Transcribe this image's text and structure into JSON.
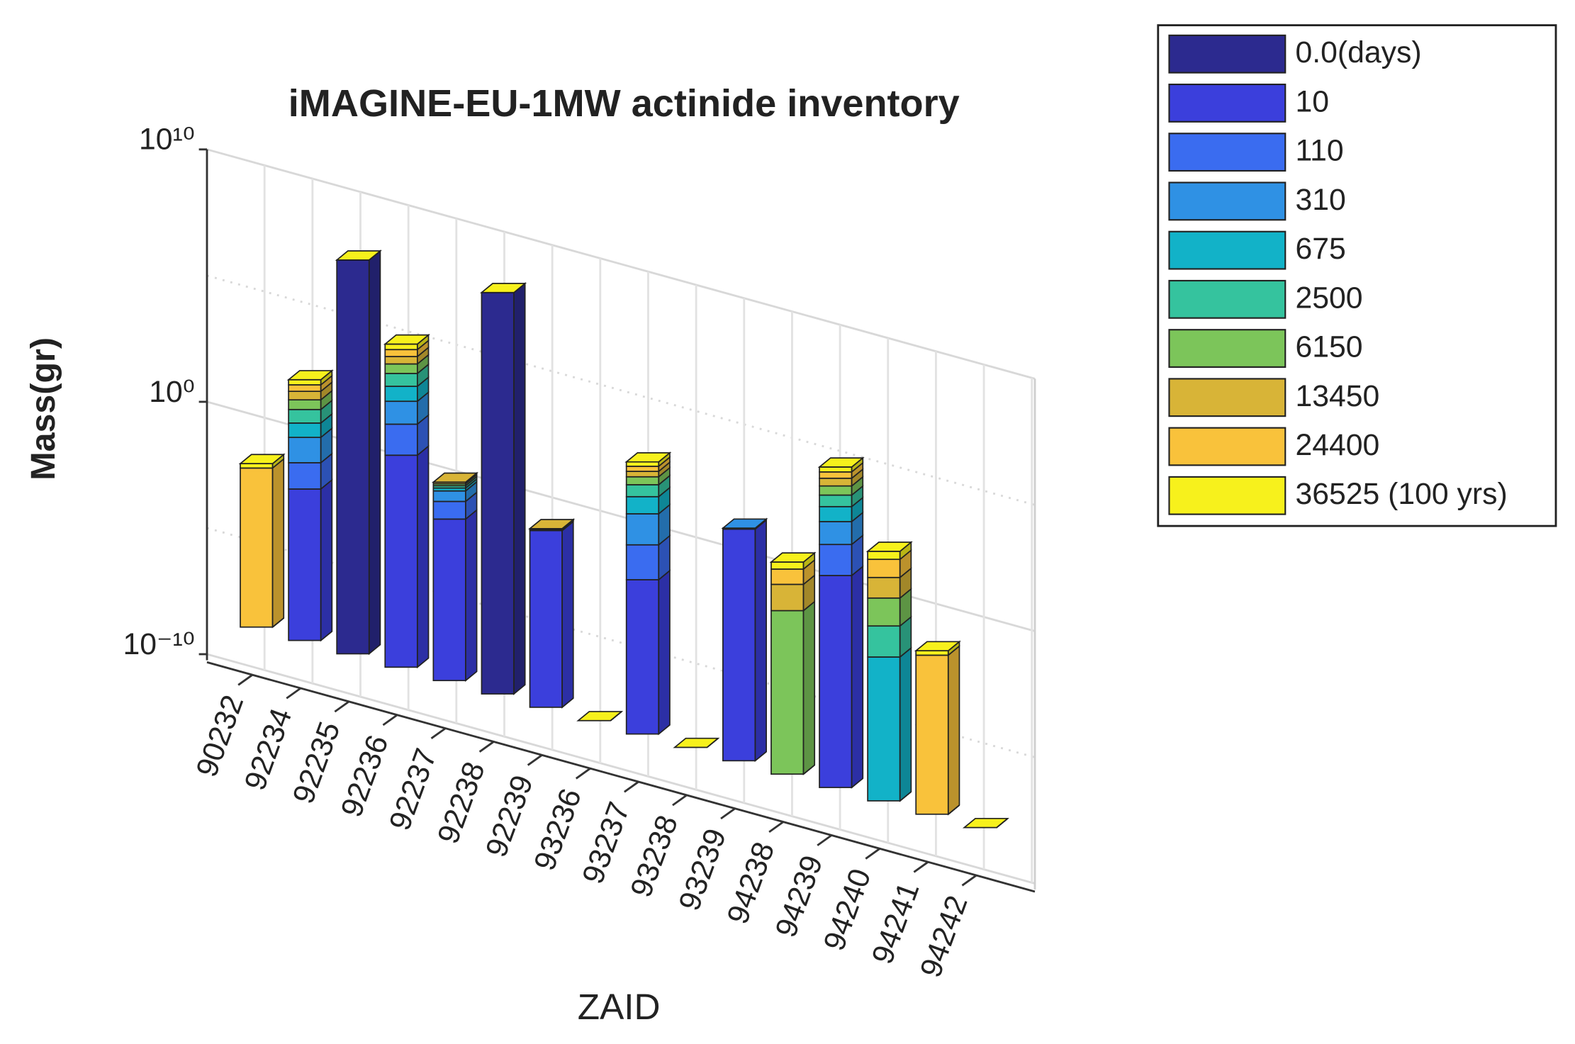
{
  "chart_data": {
    "type": "bar3",
    "title": "iMAGINE-EU-1MW actinide inventory",
    "xlabel": "ZAID",
    "ylabel": "Mass(gr)",
    "categories": [
      "90232",
      "92234",
      "92235",
      "92236",
      "92237",
      "92238",
      "92239",
      "93236",
      "93237",
      "93238",
      "93239",
      "94238",
      "94239",
      "94240",
      "94241",
      "94242"
    ],
    "series": [
      {
        "name": "0.0(days)",
        "color": "#2c2a8f",
        "values": [
          0,
          0,
          400000,
          0,
          0,
          800000,
          0,
          0,
          0,
          0,
          0,
          0,
          0,
          0,
          0,
          0
        ]
      },
      {
        "name": "10",
        "color": "#3b3fdc",
        "values": [
          0,
          0.0001,
          0,
          0.025,
          0.00025,
          0,
          0.001,
          0,
          0.00013,
          0,
          0.15,
          0,
          0.025,
          0,
          0,
          0
        ]
      },
      {
        "name": "110",
        "color": "#3a6cf0",
        "values": [
          0,
          0.001,
          0,
          0.4,
          0.001,
          0,
          0.0001,
          0,
          0.003,
          0,
          0.01,
          0,
          0.4,
          0,
          0,
          0
        ]
      },
      {
        "name": "310",
        "color": "#2f91e4",
        "values": [
          0,
          0.01,
          0,
          3,
          0.002,
          0,
          2e-05,
          0,
          0.05,
          0,
          0.005,
          0,
          3,
          0,
          0,
          0
        ]
      },
      {
        "name": "675",
        "color": "#12b2c8",
        "values": [
          0,
          0.03,
          0,
          10,
          0.001,
          0,
          2e-05,
          0,
          0.2,
          0,
          0,
          0,
          10,
          5e-05,
          0,
          0
        ]
      },
      {
        "name": "2500",
        "color": "#35c39e",
        "values": [
          0,
          0.1,
          0,
          30,
          0.001,
          0,
          2e-05,
          0,
          0.5,
          0,
          0,
          0,
          25,
          0.0008,
          0,
          0
        ]
      },
      {
        "name": "6150",
        "color": "#7cc55a",
        "values": [
          0,
          0.2,
          0,
          60,
          0.001,
          0,
          2e-05,
          0,
          0.8,
          0,
          0,
          0.0003,
          50,
          0.01,
          0,
          0
        ]
      },
      {
        "name": "13450",
        "color": "#d8b437",
        "values": [
          0,
          0.4,
          0,
          100,
          0.001,
          0,
          2e-05,
          0,
          1,
          0,
          0,
          0.003,
          90,
          0.06,
          0,
          0
        ]
      },
      {
        "name": "24400",
        "color": "#f9c23b",
        "values": [
          0.0002,
          0.6,
          0,
          180,
          0,
          0,
          0,
          0,
          1.5,
          0,
          0,
          0.01,
          140,
          0.3,
          0.0002,
          0
        ]
      },
      {
        "name": "36525 (100 yrs)",
        "color": "#f7f11c",
        "values": [
          0.0001,
          0.8,
          1000,
          250,
          0,
          1000,
          0,
          1e-10,
          2,
          1e-10,
          0,
          0.012,
          180,
          0.4,
          0.0001,
          1e-10
        ]
      }
    ],
    "ylim": [
      1e-10,
      10000000000
    ],
    "yticks": [
      {
        "value": 1e-10,
        "label": "10⁻¹⁰"
      },
      {
        "value": 1,
        "label": "10⁰"
      },
      {
        "value": 10000000000,
        "label": "10¹⁰"
      }
    ],
    "log_y": true,
    "stacked": true,
    "grid": true,
    "legend": "outside-right"
  }
}
